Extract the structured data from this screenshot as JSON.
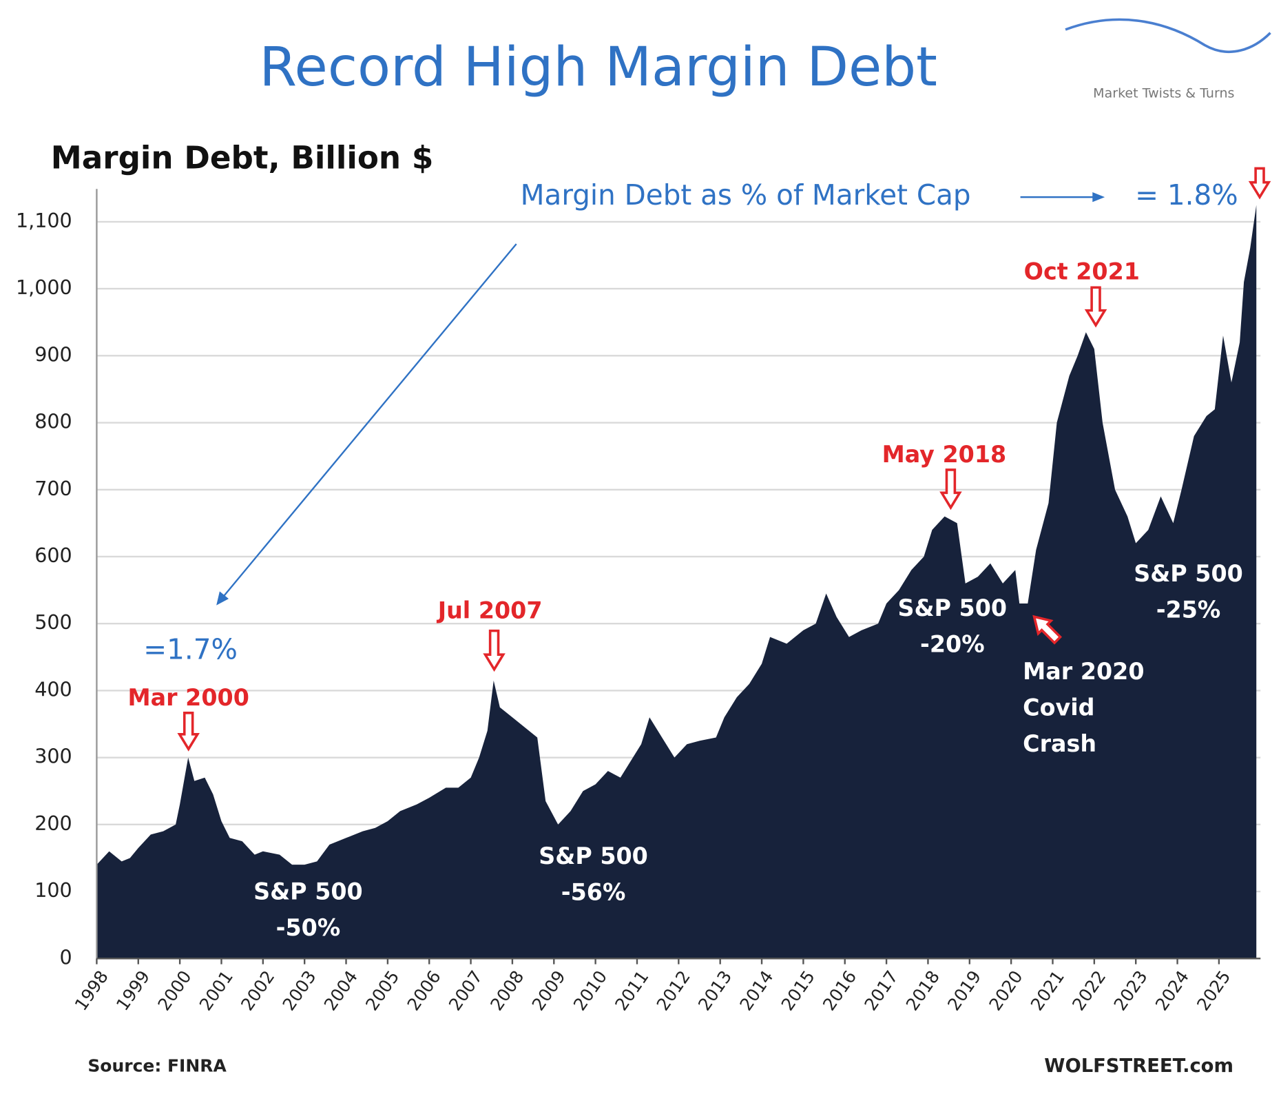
{
  "chart_data": {
    "type": "area",
    "title": "Record High Margin Debt",
    "y_axis_title": "Margin Debt, Billion $",
    "logo": "Market Twists & Turns",
    "source": "Source: FINRA",
    "credit": "WOLFSTREET.com",
    "color": "#17223b",
    "grid": true,
    "xlim": [
      1998,
      2026
    ],
    "xticks": [
      1998,
      1999,
      2000,
      2001,
      2002,
      2003,
      2004,
      2005,
      2006,
      2007,
      2008,
      2009,
      2010,
      2011,
      2012,
      2013,
      2014,
      2015,
      2016,
      2017,
      2018,
      2019,
      2020,
      2021,
      2022,
      2023,
      2024,
      2025
    ],
    "ylim": [
      0,
      1100
    ],
    "yticks": [
      0,
      100,
      200,
      300,
      400,
      500,
      600,
      700,
      800,
      900,
      {
        "value": 1000,
        "label": "1,000"
      },
      {
        "value": 1100,
        "label": "1,100"
      }
    ],
    "x": [
      1998.0,
      1998.3,
      1998.6,
      1998.8,
      1999.0,
      1999.3,
      1999.6,
      1999.9,
      2000.0,
      2000.2,
      2000.35,
      2000.6,
      2000.8,
      2001.0,
      2001.2,
      2001.5,
      2001.8,
      2002.0,
      2002.4,
      2002.7,
      2003.0,
      2003.3,
      2003.6,
      2004.0,
      2004.4,
      2004.7,
      2005.0,
      2005.3,
      2005.7,
      2006.0,
      2006.4,
      2006.7,
      2007.0,
      2007.2,
      2007.4,
      2007.55,
      2007.7,
      2008.0,
      2008.3,
      2008.6,
      2008.8,
      2009.1,
      2009.4,
      2009.7,
      2010.0,
      2010.3,
      2010.6,
      2010.9,
      2011.1,
      2011.3,
      2011.6,
      2011.9,
      2012.2,
      2012.5,
      2012.9,
      2013.1,
      2013.4,
      2013.7,
      2014.0,
      2014.2,
      2014.6,
      2015.0,
      2015.3,
      2015.55,
      2015.8,
      2016.1,
      2016.4,
      2016.8,
      2017.0,
      2017.3,
      2017.6,
      2017.9,
      2018.1,
      2018.4,
      2018.7,
      2018.9,
      2019.2,
      2019.5,
      2019.8,
      2020.1,
      2020.2,
      2020.4,
      2020.6,
      2020.9,
      2021.1,
      2021.4,
      2021.6,
      2021.8,
      2022.0,
      2022.2,
      2022.5,
      2022.8,
      2023.0,
      2023.3,
      2023.6,
      2023.9,
      2024.1,
      2024.4,
      2024.7,
      2024.9,
      2025.1,
      2025.3,
      2025.5,
      2025.6,
      2025.75,
      2025.9
    ],
    "values": [
      140,
      160,
      145,
      150,
      165,
      185,
      190,
      200,
      230,
      300,
      265,
      270,
      245,
      205,
      180,
      175,
      155,
      160,
      155,
      140,
      140,
      145,
      170,
      180,
      190,
      195,
      205,
      220,
      230,
      240,
      255,
      255,
      270,
      300,
      340,
      415,
      375,
      360,
      345,
      330,
      235,
      200,
      220,
      250,
      260,
      280,
      270,
      300,
      320,
      360,
      330,
      300,
      320,
      325,
      330,
      360,
      390,
      410,
      440,
      480,
      470,
      490,
      500,
      545,
      510,
      480,
      490,
      500,
      530,
      550,
      580,
      600,
      640,
      660,
      650,
      560,
      570,
      590,
      560,
      580,
      530,
      530,
      610,
      680,
      800,
      870,
      900,
      935,
      910,
      800,
      700,
      660,
      620,
      640,
      690,
      650,
      700,
      780,
      810,
      820,
      930,
      860,
      920,
      1010,
      1060,
      1125
    ],
    "annotations": [
      {
        "text": [
          "Margin Debt as % of Market Cap"
        ]
      },
      {
        "text": [
          "= 1.8%"
        ]
      },
      {
        "text": [
          "=1.7%"
        ]
      },
      {
        "text": [
          "Mar 2000"
        ]
      },
      {
        "text": [
          "Jul 2007"
        ]
      },
      {
        "text": [
          "May 2018"
        ]
      },
      {
        "text": [
          "Oct 2021"
        ]
      },
      {
        "text": [
          "S&P 500",
          "-50%"
        ]
      },
      {
        "text": [
          "S&P 500",
          "-56%"
        ]
      },
      {
        "text": [
          "S&P 500",
          "-20%"
        ]
      },
      {
        "text": [
          "S&P 500",
          "-25%"
        ]
      },
      {
        "text": [
          "Mar 2020",
          "Covid",
          "Crash"
        ]
      }
    ]
  }
}
